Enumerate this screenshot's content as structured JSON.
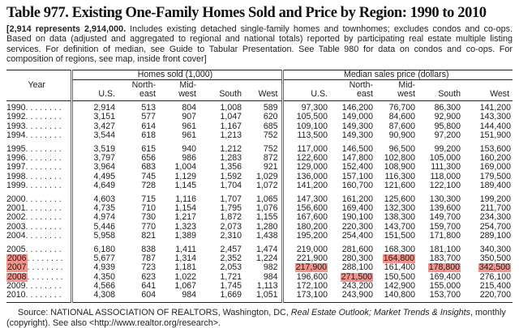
{
  "title": "Table 977. Existing One-Family Homes Sold and Price by Region: 1990 to 2010",
  "note": {
    "bold": "[2,914 represents 2,914,000.",
    "rest": " Includes existing detached single-family homes and townhomes; excludes condos and co-ops. Based on data (adjusted and aggregated to regional and national totals) reported by participating real estate multiple listing services. For definition of median, see Guide to Tabular Presentation. See Table 980 for data on condos and co-ops. For composition of regions, see map, inside front cover]"
  },
  "table": {
    "year_header": "Year",
    "group_headers": [
      {
        "label": "Homes sold (1,000)"
      },
      {
        "label": "Median sales price (dollars)"
      }
    ],
    "sub_headers": [
      {
        "lines": [
          "U.S."
        ]
      },
      {
        "lines": [
          "North-",
          "east"
        ]
      },
      {
        "lines": [
          "Mid-",
          "west"
        ]
      },
      {
        "lines": [
          "South"
        ]
      },
      {
        "lines": [
          "West"
        ]
      },
      {
        "lines": [
          "U.S."
        ]
      },
      {
        "lines": [
          "North-",
          "east"
        ]
      },
      {
        "lines": [
          "Mid-",
          "west"
        ]
      },
      {
        "lines": [
          "South"
        ]
      },
      {
        "lines": [
          "West"
        ]
      }
    ],
    "dot_leader": ". . . . . . . .",
    "highlight_color": "#f4938c",
    "rows": [
      {
        "year": "1990",
        "year_hl": false,
        "hl": [],
        "group_start": false,
        "values": [
          "2,914",
          "513",
          "804",
          "1,008",
          "589",
          "97,300",
          "146,200",
          "76,700",
          "86,300",
          "141,200"
        ]
      },
      {
        "year": "1992",
        "year_hl": false,
        "hl": [],
        "group_start": false,
        "values": [
          "3,151",
          "577",
          "907",
          "1,047",
          "620",
          "105,500",
          "149,000",
          "84,600",
          "92,900",
          "143,300"
        ]
      },
      {
        "year": "1993",
        "year_hl": false,
        "hl": [],
        "group_start": false,
        "values": [
          "3,427",
          "614",
          "961",
          "1,167",
          "685",
          "109,100",
          "149,300",
          "87,600",
          "95,800",
          "144,400"
        ]
      },
      {
        "year": "1994",
        "year_hl": false,
        "hl": [],
        "group_start": false,
        "values": [
          "3,544",
          "618",
          "961",
          "1,213",
          "752",
          "113,500",
          "149,300",
          "90,900",
          "97,200",
          "151,900"
        ]
      },
      {
        "year": "1995",
        "year_hl": false,
        "hl": [],
        "group_start": true,
        "values": [
          "3,519",
          "615",
          "940",
          "1,212",
          "752",
          "117,000",
          "146,500",
          "96,500",
          "99,200",
          "153,600"
        ]
      },
      {
        "year": "1996",
        "year_hl": false,
        "hl": [],
        "group_start": false,
        "values": [
          "3,797",
          "656",
          "986",
          "1,283",
          "872",
          "122,600",
          "147,800",
          "102,800",
          "105,000",
          "160,200"
        ]
      },
      {
        "year": "1997",
        "year_hl": false,
        "hl": [],
        "group_start": false,
        "values": [
          "3,964",
          "683",
          "1,004",
          "1,356",
          "921",
          "129,000",
          "152,400",
          "108,900",
          "111,300",
          "169,000"
        ]
      },
      {
        "year": "1998",
        "year_hl": false,
        "hl": [],
        "group_start": false,
        "values": [
          "4,495",
          "745",
          "1,129",
          "1,592",
          "1,029",
          "136,000",
          "157,100",
          "116,300",
          "118,000",
          "179,500"
        ]
      },
      {
        "year": "1999",
        "year_hl": false,
        "hl": [],
        "group_start": false,
        "values": [
          "4,649",
          "728",
          "1,145",
          "1,704",
          "1,072",
          "141,200",
          "160,700",
          "121,600",
          "122,100",
          "189,400"
        ]
      },
      {
        "year": "2000",
        "year_hl": false,
        "hl": [],
        "group_start": true,
        "values": [
          "4,603",
          "715",
          "1,116",
          "1,707",
          "1,065",
          "147,300",
          "161,200",
          "125,600",
          "130,300",
          "199,200"
        ]
      },
      {
        "year": "2001",
        "year_hl": false,
        "hl": [],
        "group_start": false,
        "values": [
          "4,735",
          "710",
          "1,154",
          "1,795",
          "1,076",
          "156,600",
          "169,400",
          "132,300",
          "139,600",
          "211,700"
        ]
      },
      {
        "year": "2002",
        "year_hl": false,
        "hl": [],
        "group_start": false,
        "values": [
          "4,974",
          "730",
          "1,217",
          "1,872",
          "1,155",
          "167,600",
          "190,100",
          "138,300",
          "149,700",
          "234,300"
        ]
      },
      {
        "year": "2003",
        "year_hl": false,
        "hl": [],
        "group_start": false,
        "values": [
          "5,446",
          "770",
          "1,323",
          "2,073",
          "1,280",
          "180,200",
          "220,300",
          "143,700",
          "159,700",
          "254,700"
        ]
      },
      {
        "year": "2004",
        "year_hl": false,
        "hl": [],
        "group_start": false,
        "values": [
          "5,958",
          "821",
          "1,389",
          "2,310",
          "1,438",
          "195,200",
          "254,400",
          "151,500",
          "171,800",
          "289,100"
        ]
      },
      {
        "year": "2005",
        "year_hl": false,
        "hl": [],
        "group_start": true,
        "values": [
          "6,180",
          "838",
          "1,411",
          "2,457",
          "1,474",
          "219,000",
          "281,600",
          "168,300",
          "181,100",
          "340,300"
        ]
      },
      {
        "year": "2006",
        "year_hl": true,
        "hl": [
          7
        ],
        "group_start": false,
        "values": [
          "5,677",
          "787",
          "1,314",
          "2,352",
          "1,224",
          "221,900",
          "280,300",
          "164,800",
          "183,700",
          "350,500"
        ]
      },
      {
        "year": "2007",
        "year_hl": true,
        "hl": [
          5,
          8,
          9
        ],
        "group_start": false,
        "values": [
          "4,939",
          "723",
          "1,181",
          "2,053",
          "982",
          "217,900",
          "288,100",
          "161,400",
          "178,800",
          "342,500"
        ]
      },
      {
        "year": "2008",
        "year_hl": true,
        "hl": [
          6
        ],
        "group_start": false,
        "values": [
          "4,350",
          "623",
          "1,022",
          "1,721",
          "984",
          "196,600",
          "271,500",
          "150,500",
          "169,400",
          "276,100"
        ]
      },
      {
        "year": "2009",
        "year_hl": false,
        "hl": [],
        "group_start": false,
        "values": [
          "4,566",
          "641",
          "1,067",
          "1,745",
          "1,113",
          "172,100",
          "243,200",
          "142,900",
          "155,000",
          "215,400"
        ]
      },
      {
        "year": "2010",
        "year_hl": false,
        "hl": [],
        "group_start": false,
        "values": [
          "4,308",
          "604",
          "984",
          "1,669",
          "1,051",
          "173,100",
          "243,900",
          "140,800",
          "153,700",
          "220,700"
        ]
      }
    ]
  },
  "source": {
    "prefix": "Source: NATIONAL ASSOCIATION OF REALTORS, Washington, DC, ",
    "italic": "Real Estate Outlook; Market Trends & Insights",
    "suffix": ", monthly (copyright). See also <http://www.realtor.org/research>."
  }
}
